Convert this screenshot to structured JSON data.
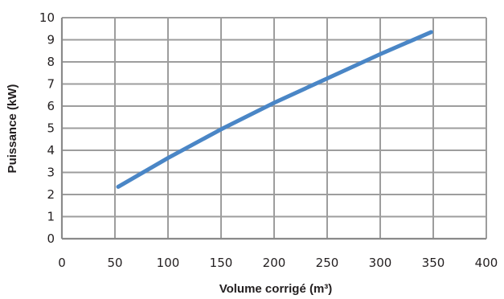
{
  "chart_data": {
    "type": "line",
    "title": "",
    "xlabel": "Volume corrigé (m³)",
    "ylabel": "Puissance (kW)",
    "xlim": [
      0,
      400
    ],
    "ylim": [
      0,
      10
    ],
    "x_ticks": [
      0,
      50,
      100,
      150,
      200,
      250,
      300,
      350,
      400
    ],
    "y_ticks": [
      0,
      1,
      2,
      3,
      4,
      5,
      6,
      7,
      8,
      9,
      10
    ],
    "grid": true,
    "legend": "none",
    "series": [
      {
        "color": "#4a86c6",
        "x": [
          53,
          100,
          150,
          200,
          250,
          300,
          348
        ],
        "y": [
          2.35,
          3.65,
          4.95,
          6.15,
          7.25,
          8.35,
          9.35
        ]
      }
    ]
  }
}
